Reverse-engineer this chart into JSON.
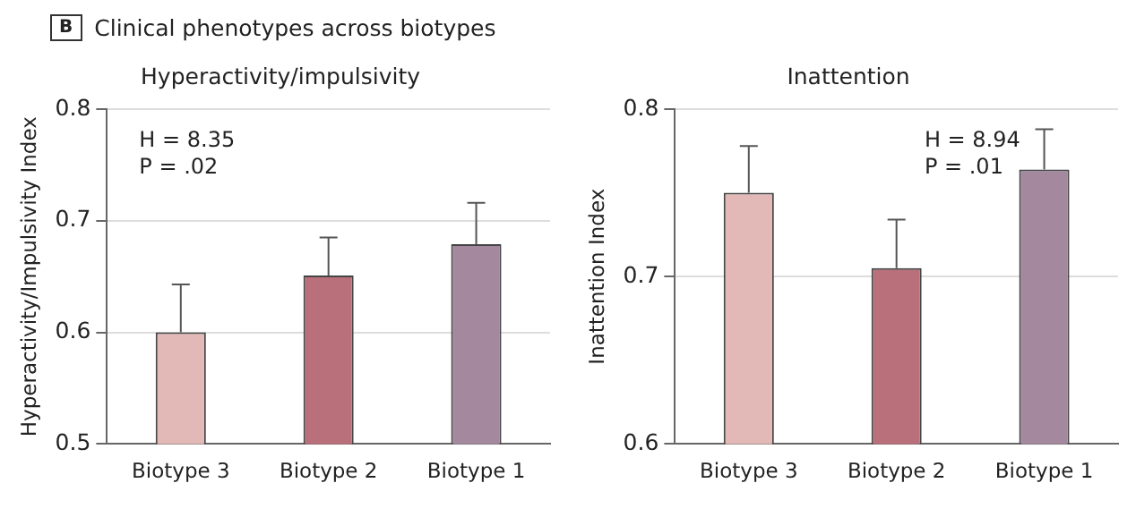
{
  "chart_data": [
    {
      "type": "other",
      "title": "Clinical phenotypes across biotypes",
      "annotations": [
        "B"
      ]
    },
    {
      "type": "bar",
      "title": "Hyperactivity/impulsivity",
      "ylabel": "Hyperactivity/Impulsivity Index",
      "categories": [
        "Biotype 3",
        "Biotype 2",
        "Biotype 1"
      ],
      "values": [
        0.6,
        0.651,
        0.679
      ],
      "colors": [
        "#e2b9b6",
        "#b9707a",
        "#a4889e"
      ],
      "errors": [
        [
          0.6,
          0.643
        ],
        [
          0.651,
          0.685
        ],
        [
          0.679,
          0.716
        ]
      ],
      "ylim": [
        0.5,
        0.8
      ],
      "yticks": [
        0.5,
        0.6,
        0.7,
        0.8
      ],
      "grid": "y",
      "annotations": [
        "H = 8.35",
        "P = .02"
      ]
    },
    {
      "type": "bar",
      "title": "Inattention",
      "ylabel": "Inattention Index",
      "categories": [
        "Biotype 3",
        "Biotype 2",
        "Biotype 1"
      ],
      "values": [
        0.75,
        0.705,
        0.764
      ],
      "colors": [
        "#e2b9b6",
        "#b9707a",
        "#a4889e"
      ],
      "errors": [
        [
          0.75,
          0.778
        ],
        [
          0.705,
          0.734
        ],
        [
          0.764,
          0.788
        ]
      ],
      "ylim": [
        0.6,
        0.8
      ],
      "yticks": [
        0.6,
        0.7,
        0.8
      ],
      "grid": "y",
      "annotations": [
        "H = 8.94",
        "P = .01"
      ]
    }
  ]
}
